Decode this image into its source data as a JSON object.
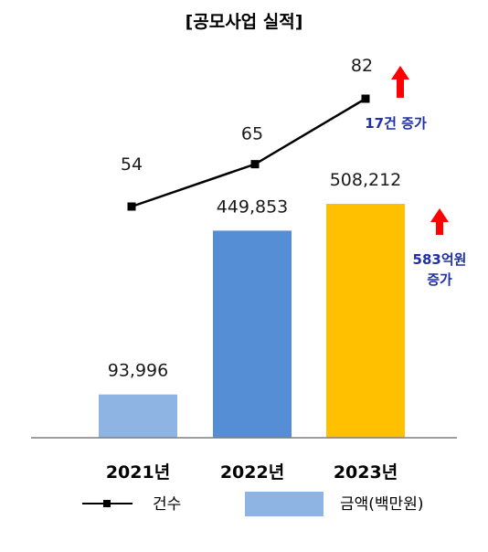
{
  "chart_data": {
    "type": "bar",
    "title": "[공모사업 실적]",
    "categories": [
      "2021년",
      "2022년",
      "2023년"
    ],
    "series": [
      {
        "name": "금액(백만원)",
        "kind": "bar",
        "values": [
          93996,
          449853,
          508212
        ],
        "value_labels": [
          "93,996",
          "449,853",
          "508,212"
        ],
        "colors": [
          "#8eb4e3",
          "#558ed5",
          "#ffc000"
        ]
      },
      {
        "name": "건수",
        "kind": "line",
        "values": [
          54,
          65,
          82
        ],
        "value_labels": [
          "54",
          "65",
          "82"
        ],
        "color": "#000000"
      }
    ],
    "annotations": {
      "count_increase": "17건 증가",
      "amount_increase_line1": "583억원",
      "amount_increase_line2": "증가"
    },
    "arrow_color": "#ff0000",
    "note_color": "#1f2fa8",
    "legend_position": "bottom"
  }
}
